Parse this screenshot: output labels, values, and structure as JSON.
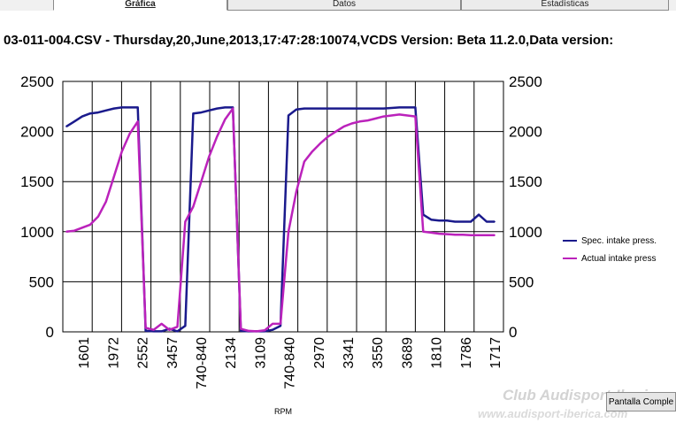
{
  "tabs": [
    {
      "label": "Gráfica",
      "active": true
    },
    {
      "label": "Datos",
      "active": false
    },
    {
      "label": "Estadísticas",
      "active": false
    }
  ],
  "header": {
    "title": "03-011-004.CSV - Thursday,20,June,2013,17:47:28:10074,VCDS Version: Beta 11.2.0,Data version:"
  },
  "chart_data": {
    "type": "line",
    "title": "",
    "xlabel": "RPM",
    "ylabel": "",
    "ylim": [
      0,
      2500
    ],
    "yticks": [
      0,
      500,
      1000,
      1500,
      2000,
      2500
    ],
    "grid": true,
    "legend_position": "right",
    "x_tick_labels": [
      "1601",
      "1972",
      "2552",
      "3457",
      "740-840",
      "2134",
      "3109",
      "740-840",
      "2970",
      "3341",
      "3550",
      "3689",
      "1810",
      "1786",
      "1717"
    ],
    "series": [
      {
        "name": "Spec. intake press.",
        "color": "#1a1a8c",
        "values": [
          2050,
          2100,
          2150,
          2180,
          2190,
          2210,
          2230,
          2240,
          2240,
          2240,
          10,
          5,
          5,
          30,
          5,
          60,
          2180,
          2190,
          2210,
          2230,
          2240,
          2240,
          10,
          5,
          5,
          5,
          20,
          60,
          2160,
          2220,
          2230,
          2230,
          2230,
          2230,
          2230,
          2230,
          2230,
          2230,
          2230,
          2230,
          2230,
          2235,
          2240,
          2240,
          2240,
          1170,
          1120,
          1110,
          1110,
          1100,
          1100,
          1100,
          1170,
          1100,
          1100
        ]
      },
      {
        "name": "Actual intake press",
        "color": "#bb22bb",
        "values": [
          1000,
          1010,
          1040,
          1070,
          1150,
          1300,
          1550,
          1800,
          1980,
          2100,
          40,
          20,
          80,
          20,
          50,
          1100,
          1250,
          1500,
          1750,
          1950,
          2120,
          2230,
          30,
          10,
          5,
          15,
          80,
          80,
          1000,
          1400,
          1700,
          1800,
          1880,
          1950,
          2000,
          2050,
          2080,
          2100,
          2110,
          2130,
          2150,
          2160,
          2170,
          2160,
          2150,
          1000,
          990,
          980,
          975,
          970,
          970,
          965,
          965,
          965,
          965
        ]
      }
    ]
  },
  "legend": {
    "items": [
      {
        "label": "Spec. intake press.",
        "color": "#1a1a8c"
      },
      {
        "label": "Actual intake press",
        "color": "#bb22bb"
      }
    ]
  },
  "buttons": {
    "fullscreen_label": "Pantalla Comple"
  },
  "watermark": {
    "logo_text": "Club Audisport-Iberica",
    "url_text": "www.audisport-iberica.com"
  }
}
